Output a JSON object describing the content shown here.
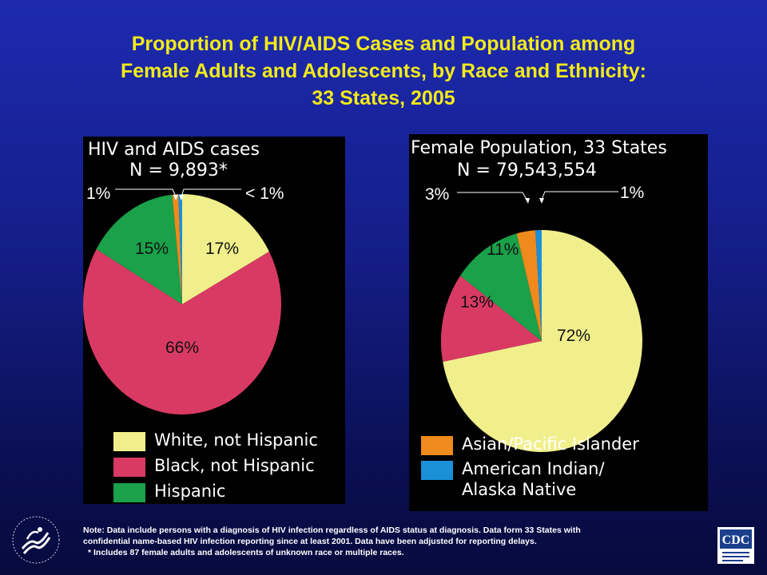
{
  "title": {
    "line1": "Proportion of HIV/AIDS Cases and Population among",
    "line2": "Female Adults and Adolescents, by Race and Ethnicity:",
    "line3": "33 States, 2005"
  },
  "left_panel": {
    "heading": "HIV and AIDS cases",
    "subheading": "N = 9,893*"
  },
  "right_panel": {
    "heading": "Female Population, 33 States",
    "subheading": "N = 79,543,554"
  },
  "legend_left": [
    {
      "label": "White, not Hispanic",
      "color": "#f1ef8c"
    },
    {
      "label": "Black, not Hispanic",
      "color": "#d93a64"
    },
    {
      "label": "Hispanic",
      "color": "#1aa14a"
    }
  ],
  "legend_right": [
    {
      "label": "Asian/Pacific Islander",
      "color": "#f08a1c"
    },
    {
      "label": "American Indian/",
      "label2": "Alaska Native",
      "color": "#1a90d8"
    }
  ],
  "note": {
    "line1": "Note: Data include persons with a diagnosis of HIV infection regardless of AIDS status at diagnosis. Data form 33 States with",
    "line2": "confidential name-based HIV infection reporting since at least 2001. Data have been adjusted for reporting delays.",
    "line3": "* Includes 87 female adults and adolescents of unknown race or multiple races."
  },
  "chart_data": [
    {
      "type": "pie",
      "title": "HIV and AIDS cases",
      "subtitle": "N = 9,893*",
      "slices": [
        {
          "name": "White, not Hispanic",
          "value": 17,
          "label": "17%",
          "color": "#f1ef8c"
        },
        {
          "name": "Black, not Hispanic",
          "value": 66,
          "label": "66%",
          "color": "#d93a64"
        },
        {
          "name": "Hispanic",
          "value": 15,
          "label": "15%",
          "color": "#1aa14a"
        },
        {
          "name": "Asian/Pacific Islander",
          "value": 1,
          "label": "1%",
          "color": "#f08a1c"
        },
        {
          "name": "American Indian/Alaska Native",
          "value": 0.6,
          "label": "< 1%",
          "color": "#1a90d8"
        }
      ]
    },
    {
      "type": "pie",
      "title": "Female Population, 33 States",
      "subtitle": "N = 79,543,554",
      "slices": [
        {
          "name": "White, not Hispanic",
          "value": 72,
          "label": "72%",
          "color": "#f1ef8c"
        },
        {
          "name": "Black, not Hispanic",
          "value": 13,
          "label": "13%",
          "color": "#d93a64"
        },
        {
          "name": "Hispanic",
          "value": 11,
          "label": "11%",
          "color": "#1aa14a"
        },
        {
          "name": "Asian/Pacific Islander",
          "value": 3,
          "label": "3%",
          "color": "#f08a1c"
        },
        {
          "name": "American Indian/Alaska Native",
          "value": 1,
          "label": "1%",
          "color": "#1a90d8"
        }
      ]
    }
  ]
}
